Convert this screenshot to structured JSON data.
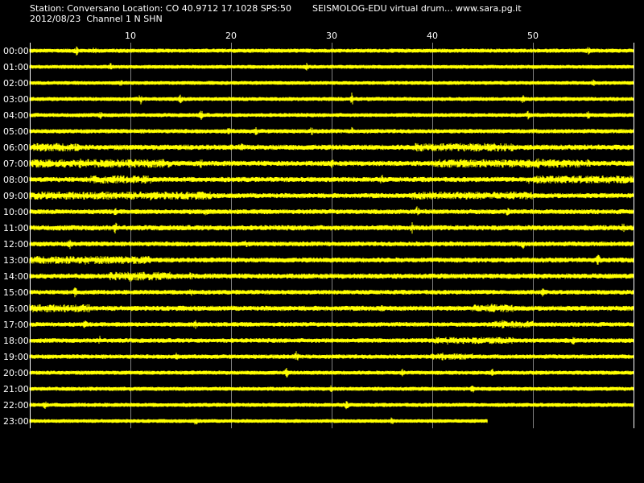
{
  "header": {
    "station_line": "Station: Conversano Location: CO 40.9712 17.1028 SPS:50",
    "date_line": "2012/08/23  Channel 1 N SHN",
    "credit": "SEISMOLOG-EDU virtual drum... www.sara.pg.it"
  },
  "colors": {
    "background": "#000000",
    "trace": "#ffff00",
    "grid": "#808080",
    "frame": "#ffffff",
    "text": "#ffffff"
  },
  "chart_data": {
    "type": "line",
    "title": "",
    "xlabel": "",
    "ylabel": "",
    "x_axis": {
      "unit": "minutes",
      "range": [
        0,
        60
      ],
      "ticks": [
        10,
        20,
        30,
        40,
        50
      ],
      "tick_labels": [
        "10",
        "20",
        "30",
        "40",
        "50"
      ],
      "grid": true
    },
    "rows": [
      "00:00",
      "01:00",
      "02:00",
      "03:00",
      "04:00",
      "05:00",
      "06:00",
      "07:00",
      "08:00",
      "09:00",
      "10:00",
      "11:00",
      "12:00",
      "13:00",
      "14:00",
      "15:00",
      "16:00",
      "17:00",
      "18:00",
      "19:00",
      "20:00",
      "21:00",
      "22:00",
      "23:00"
    ],
    "last_row_end_minute": 45.5,
    "noise_level": [
      0.7,
      0.6,
      0.6,
      0.7,
      0.7,
      0.8,
      1.2,
      1.2,
      1.1,
      1.1,
      1.0,
      1.2,
      1.0,
      1.1,
      1.2,
      0.9,
      1.1,
      0.9,
      0.9,
      0.8,
      0.7,
      0.7,
      0.7,
      0.6
    ],
    "spikes": [
      {
        "row": 0,
        "minute": 4.6,
        "amp": 5
      },
      {
        "row": 0,
        "minute": 6.4,
        "amp": 4
      },
      {
        "row": 0,
        "minute": 55.5,
        "amp": 4
      },
      {
        "row": 1,
        "minute": 8.0,
        "amp": 3
      },
      {
        "row": 1,
        "minute": 27.5,
        "amp": 3
      },
      {
        "row": 2,
        "minute": 9.0,
        "amp": 3
      },
      {
        "row": 2,
        "minute": 56.0,
        "amp": 3
      },
      {
        "row": 3,
        "minute": 11.0,
        "amp": 5
      },
      {
        "row": 3,
        "minute": 15.0,
        "amp": 4
      },
      {
        "row": 3,
        "minute": 32.0,
        "amp": 6
      },
      {
        "row": 3,
        "minute": 49.0,
        "amp": 3
      },
      {
        "row": 4,
        "minute": 7.0,
        "amp": 3
      },
      {
        "row": 4,
        "minute": 17.0,
        "amp": 5
      },
      {
        "row": 4,
        "minute": 49.5,
        "amp": 4
      },
      {
        "row": 4,
        "minute": 55.5,
        "amp": 4
      },
      {
        "row": 5,
        "minute": 19.8,
        "amp": 3
      },
      {
        "row": 5,
        "minute": 22.5,
        "amp": 3
      },
      {
        "row": 5,
        "minute": 28.0,
        "amp": 3
      },
      {
        "row": 5,
        "minute": 32.0,
        "amp": 3
      },
      {
        "row": 6,
        "minute": 21.0,
        "amp": 3
      },
      {
        "row": 6,
        "minute": 39.0,
        "amp": 4
      },
      {
        "row": 6,
        "minute": 44.0,
        "amp": 3
      },
      {
        "row": 7,
        "minute": 5.0,
        "amp": 4
      },
      {
        "row": 7,
        "minute": 17.0,
        "amp": 3
      },
      {
        "row": 7,
        "minute": 30.0,
        "amp": 3
      },
      {
        "row": 7,
        "minute": 50.5,
        "amp": 4
      },
      {
        "row": 7,
        "minute": 55.5,
        "amp": 3
      },
      {
        "row": 8,
        "minute": 9.0,
        "amp": 3
      },
      {
        "row": 8,
        "minute": 10.5,
        "amp": 4
      },
      {
        "row": 8,
        "minute": 35.0,
        "amp": 3
      },
      {
        "row": 8,
        "minute": 49.5,
        "amp": 4
      },
      {
        "row": 8,
        "minute": 57.5,
        "amp": 3
      },
      {
        "row": 9,
        "minute": 6.0,
        "amp": 3
      },
      {
        "row": 9,
        "minute": 12.0,
        "amp": 3
      },
      {
        "row": 9,
        "minute": 40.0,
        "amp": 3
      },
      {
        "row": 10,
        "minute": 8.5,
        "amp": 3
      },
      {
        "row": 10,
        "minute": 17.5,
        "amp": 3
      },
      {
        "row": 10,
        "minute": 38.5,
        "amp": 4
      },
      {
        "row": 10,
        "minute": 47.5,
        "amp": 3
      },
      {
        "row": 11,
        "minute": 8.5,
        "amp": 5
      },
      {
        "row": 11,
        "minute": 38.0,
        "amp": 4
      },
      {
        "row": 11,
        "minute": 59.0,
        "amp": 4
      },
      {
        "row": 12,
        "minute": 4.0,
        "amp": 4
      },
      {
        "row": 12,
        "minute": 21.5,
        "amp": 3
      },
      {
        "row": 12,
        "minute": 49.0,
        "amp": 4
      },
      {
        "row": 13,
        "minute": 2.5,
        "amp": 3
      },
      {
        "row": 13,
        "minute": 5.5,
        "amp": 3
      },
      {
        "row": 13,
        "minute": 10.5,
        "amp": 3
      },
      {
        "row": 13,
        "minute": 56.5,
        "amp": 5
      },
      {
        "row": 14,
        "minute": 10.0,
        "amp": 5
      },
      {
        "row": 14,
        "minute": 10.8,
        "amp": 4
      },
      {
        "row": 14,
        "minute": 16.0,
        "amp": 3
      },
      {
        "row": 15,
        "minute": 4.5,
        "amp": 4
      },
      {
        "row": 15,
        "minute": 16.0,
        "amp": 3
      },
      {
        "row": 15,
        "minute": 51.0,
        "amp": 3
      },
      {
        "row": 16,
        "minute": 46.0,
        "amp": 4
      },
      {
        "row": 16,
        "minute": 47.0,
        "amp": 3
      },
      {
        "row": 16,
        "minute": 35.0,
        "amp": 3
      },
      {
        "row": 17,
        "minute": 5.5,
        "amp": 3
      },
      {
        "row": 17,
        "minute": 16.5,
        "amp": 3
      },
      {
        "row": 17,
        "minute": 47.0,
        "amp": 4
      },
      {
        "row": 18,
        "minute": 7.0,
        "amp": 4
      },
      {
        "row": 18,
        "minute": 41.5,
        "amp": 4
      },
      {
        "row": 18,
        "minute": 54.0,
        "amp": 3
      },
      {
        "row": 19,
        "minute": 14.5,
        "amp": 4
      },
      {
        "row": 19,
        "minute": 26.5,
        "amp": 5
      },
      {
        "row": 19,
        "minute": 41.0,
        "amp": 3
      },
      {
        "row": 20,
        "minute": 25.5,
        "amp": 5
      },
      {
        "row": 20,
        "minute": 37.0,
        "amp": 3
      },
      {
        "row": 20,
        "minute": 46.0,
        "amp": 3
      },
      {
        "row": 21,
        "minute": 30.0,
        "amp": 3
      },
      {
        "row": 21,
        "minute": 44.0,
        "amp": 3
      },
      {
        "row": 22,
        "minute": 1.5,
        "amp": 3
      },
      {
        "row": 22,
        "minute": 31.5,
        "amp": 4
      },
      {
        "row": 23,
        "minute": 16.5,
        "amp": 3
      },
      {
        "row": 23,
        "minute": 36.0,
        "amp": 3
      }
    ],
    "busy_segments": [
      {
        "row": 6,
        "from": 0,
        "to": 5
      },
      {
        "row": 6,
        "from": 38,
        "to": 48
      },
      {
        "row": 7,
        "from": 0,
        "to": 14
      },
      {
        "row": 7,
        "from": 40,
        "to": 55
      },
      {
        "row": 8,
        "from": 6,
        "to": 12
      },
      {
        "row": 8,
        "from": 50,
        "to": 60
      },
      {
        "row": 9,
        "from": 0,
        "to": 18
      },
      {
        "row": 9,
        "from": 38,
        "to": 50
      },
      {
        "row": 13,
        "from": 0,
        "to": 12
      },
      {
        "row": 14,
        "from": 8,
        "to": 14
      },
      {
        "row": 16,
        "from": 0,
        "to": 6
      },
      {
        "row": 16,
        "from": 44,
        "to": 48
      },
      {
        "row": 17,
        "from": 46,
        "to": 50
      },
      {
        "row": 18,
        "from": 40,
        "to": 48
      },
      {
        "row": 19,
        "from": 40,
        "to": 44
      }
    ]
  }
}
